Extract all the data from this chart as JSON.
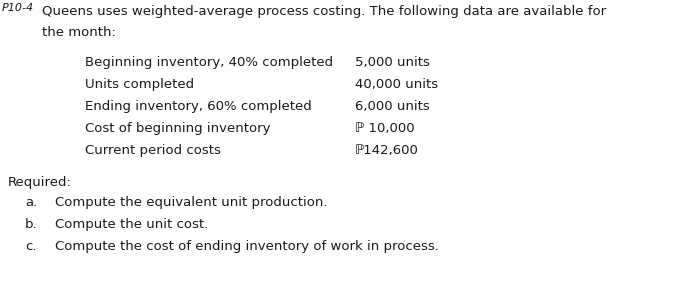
{
  "bg_color": "#ffffff",
  "text_color": "#1a1a1a",
  "header_prefix": "P10-4",
  "header_line1": "Queens uses weighted-average process costing. The following data are available for",
  "header_line2": "the month:",
  "left_labels": [
    "Beginning inventory, 40% completed",
    "Units completed",
    "Ending inventory, 60% completed",
    "Cost of beginning inventory",
    "Current period costs"
  ],
  "right_values": [
    "5,000 units",
    "40,000 units",
    "6,000 units",
    "ℙ 10,000",
    "ℙ142,600"
  ],
  "required_label": "Required:",
  "required_items": [
    [
      "a.",
      "Compute the equivalent unit production."
    ],
    [
      "b.",
      "Compute the unit cost."
    ],
    [
      "c.",
      "Compute the cost of ending inventory of work in process."
    ]
  ],
  "fs": 9.5
}
